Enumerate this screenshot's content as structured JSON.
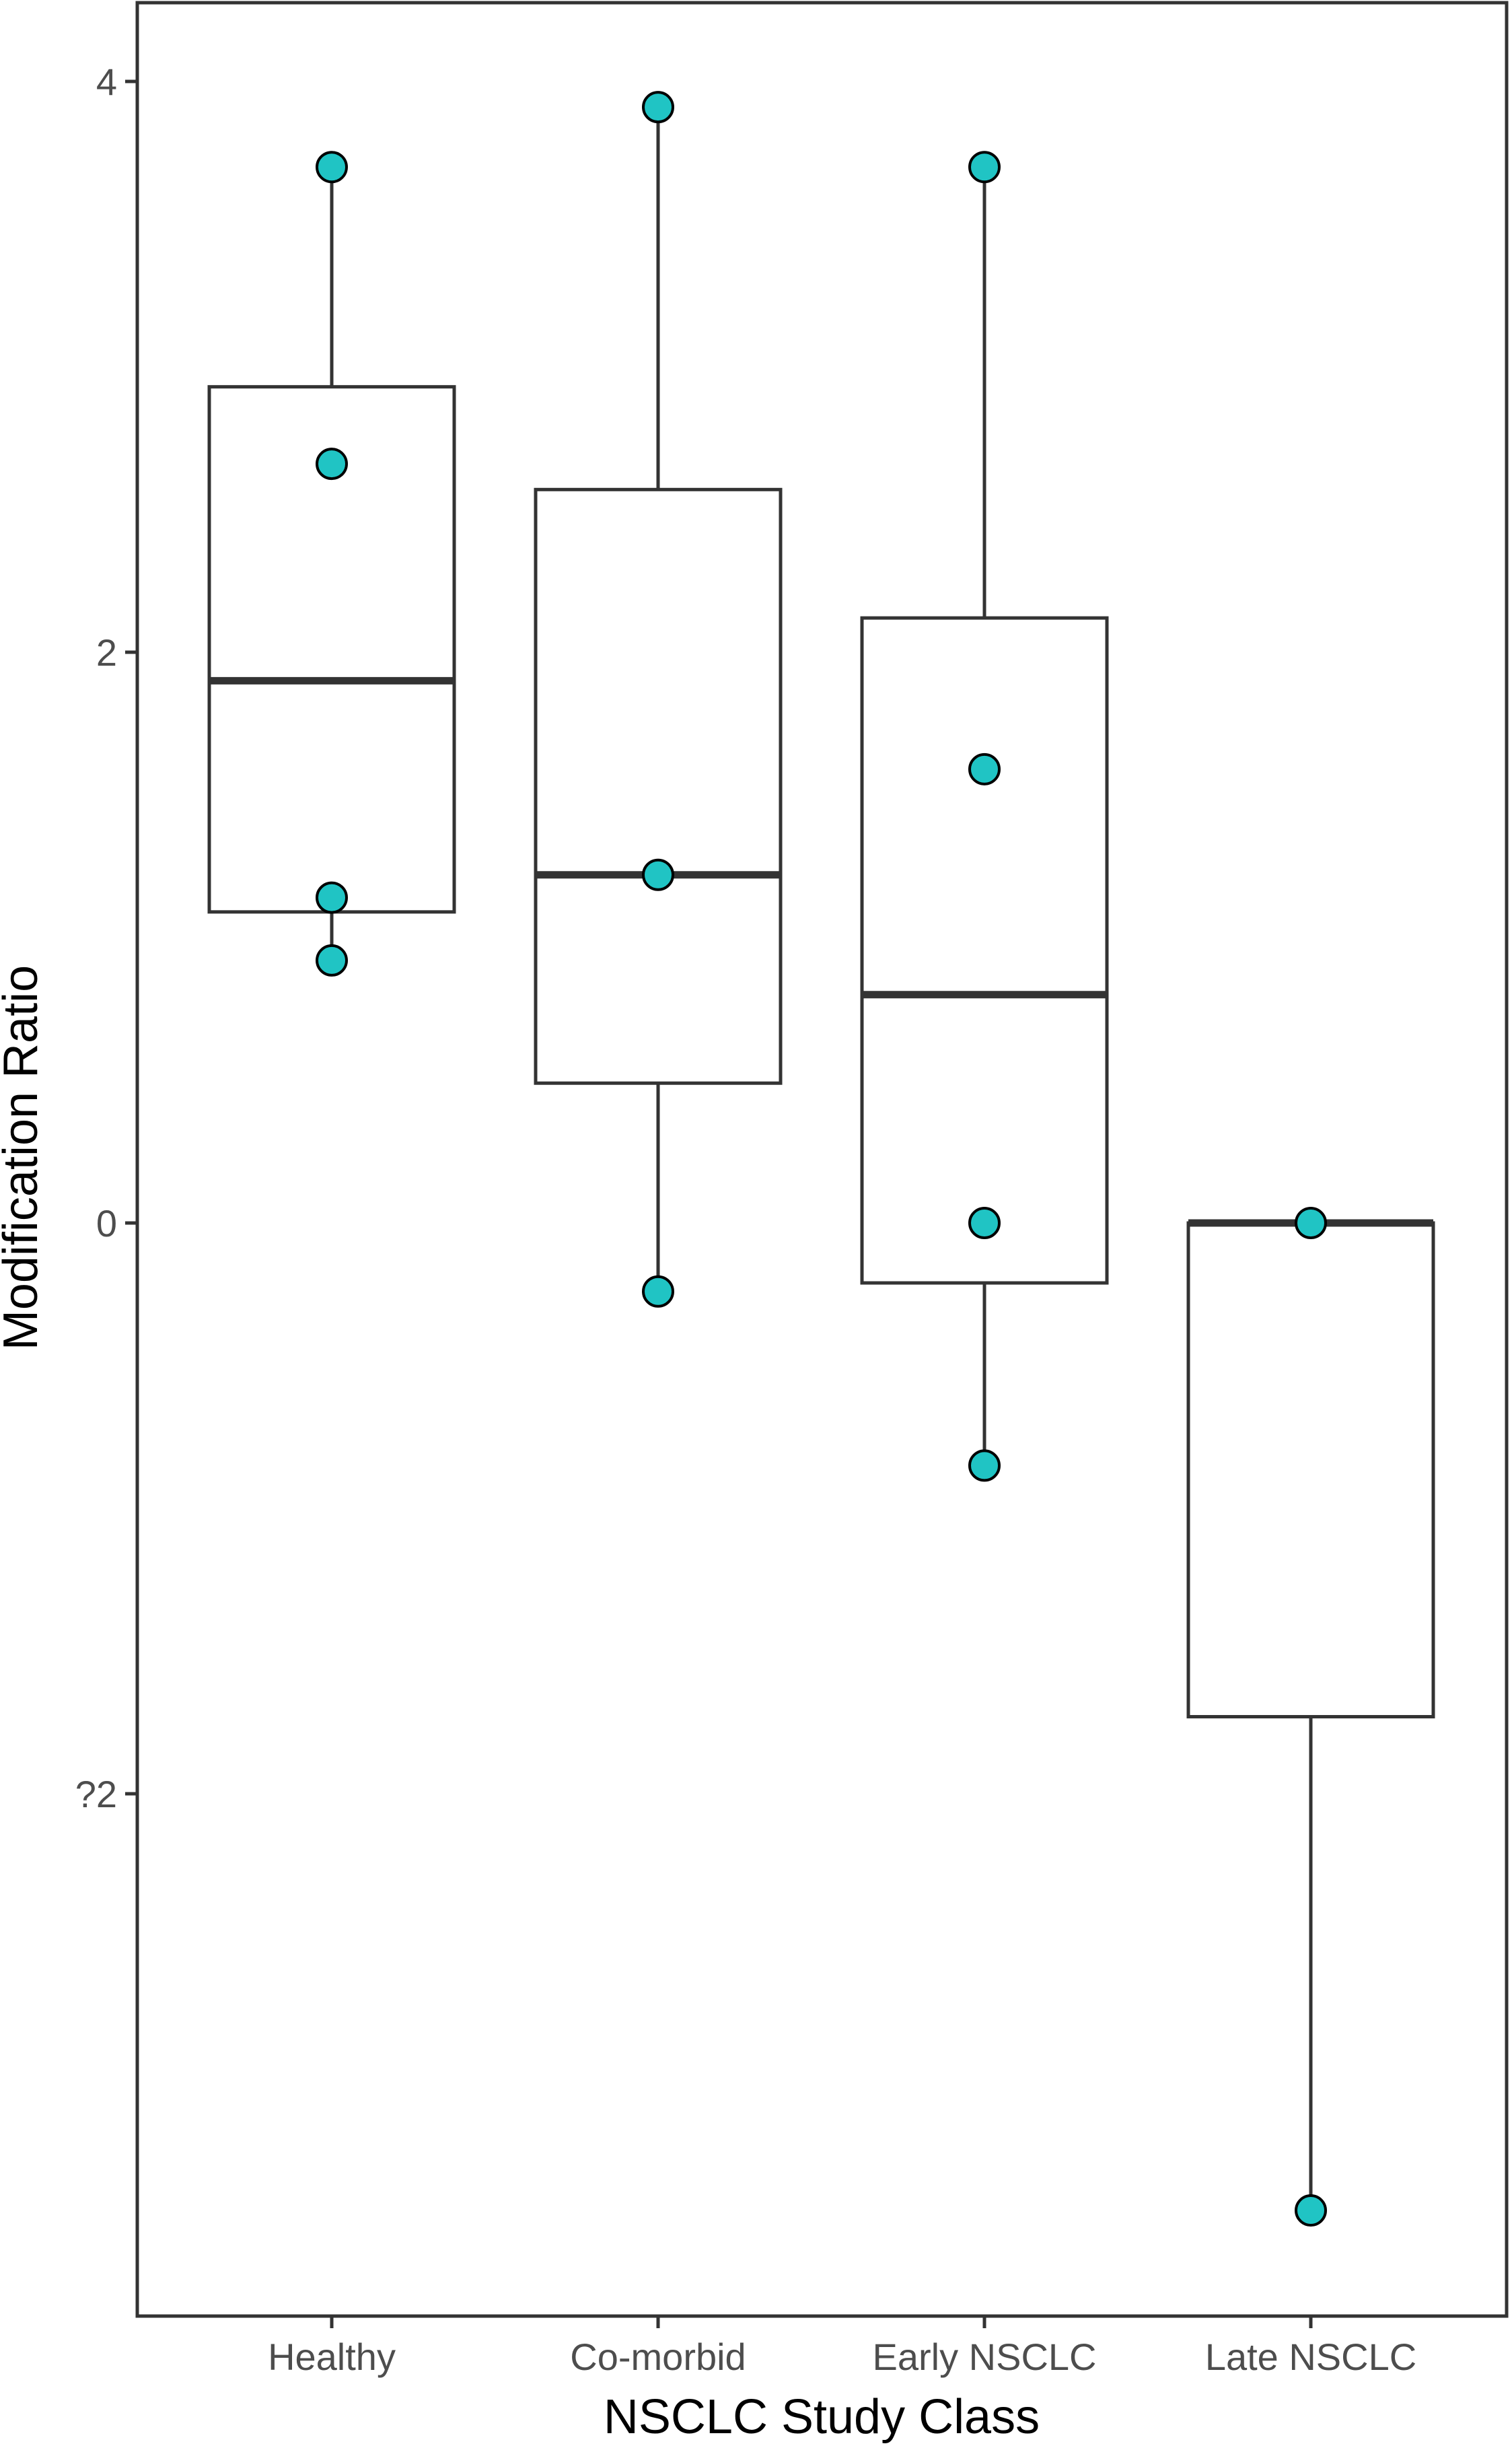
{
  "chart_data": {
    "type": "box",
    "xlabel": "NSCLC Study Class",
    "ylabel": "Modification Ratio",
    "categories": [
      "Healthy",
      "Co-morbid",
      "Early NSCLC",
      "Late NSCLC"
    ],
    "ylim": [
      -3.8,
      4.3
    ],
    "yticks": [
      4,
      2,
      0,
      -2
    ],
    "ytick_labels": [
      "4",
      "2",
      "0",
      "?2"
    ],
    "grid": false,
    "legend": "none",
    "colors": {
      "point_fill": "#20C4C4",
      "stroke": "#333333"
    },
    "boxes": [
      {
        "category": "Healthy",
        "min": 0.92,
        "q1": 1.09,
        "median": 1.9,
        "q3": 2.93,
        "max": 3.7
      },
      {
        "category": "Co-morbid",
        "min": -0.24,
        "q1": 0.49,
        "median": 1.22,
        "q3": 2.57,
        "max": 3.91
      },
      {
        "category": "Early NSCLC",
        "min": -0.85,
        "q1": -0.21,
        "median": 0.8,
        "q3": 2.12,
        "max": 3.7
      },
      {
        "category": "Late NSCLC",
        "min": -3.46,
        "q1": -1.73,
        "median": 0.0,
        "q3": 0.0,
        "max": 0.0
      }
    ],
    "points": [
      {
        "category": "Healthy",
        "values": [
          3.7,
          2.66,
          1.14,
          0.92
        ]
      },
      {
        "category": "Co-morbid",
        "values": [
          3.91,
          1.22,
          -0.24
        ]
      },
      {
        "category": "Early NSCLC",
        "values": [
          3.7,
          1.59,
          0.0,
          -0.85
        ]
      },
      {
        "category": "Late NSCLC",
        "values": [
          0.0,
          -3.46
        ]
      }
    ]
  }
}
